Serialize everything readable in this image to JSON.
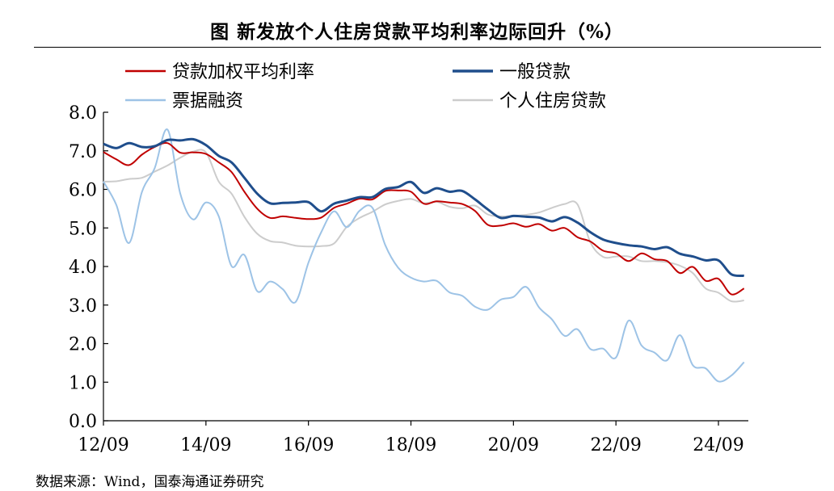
{
  "chart_data": {
    "type": "line",
    "title": "图 新发放个人住房贷款平均利率边际回升（%）",
    "xlabel": "",
    "ylabel": "",
    "ylim": [
      0,
      8
    ],
    "yticks": [
      "0.0",
      "1.0",
      "2.0",
      "3.0",
      "4.0",
      "5.0",
      "6.0",
      "7.0",
      "8.0"
    ],
    "xticks": [
      "12/09",
      "14/09",
      "16/09",
      "18/09",
      "20/09",
      "22/09",
      "24/09"
    ],
    "legend_position": "top",
    "grid": false,
    "series": [
      {
        "name": "贷款加权平均利率",
        "color": "#c00000",
        "width": 2,
        "points": [
          [
            "2012-09",
            6.97
          ],
          [
            "2012-12",
            6.78
          ],
          [
            "2013-03",
            6.63
          ],
          [
            "2013-06",
            6.9
          ],
          [
            "2013-09",
            7.1
          ],
          [
            "2013-12",
            7.2
          ],
          [
            "2014-03",
            6.95
          ],
          [
            "2014-06",
            6.96
          ],
          [
            "2014-09",
            6.92
          ],
          [
            "2014-12",
            6.7
          ],
          [
            "2015-03",
            6.45
          ],
          [
            "2015-06",
            5.94
          ],
          [
            "2015-09",
            5.5
          ],
          [
            "2015-12",
            5.26
          ],
          [
            "2016-03",
            5.3
          ],
          [
            "2016-06",
            5.26
          ],
          [
            "2016-09",
            5.23
          ],
          [
            "2016-12",
            5.27
          ],
          [
            "2017-03",
            5.52
          ],
          [
            "2017-06",
            5.63
          ],
          [
            "2017-09",
            5.76
          ],
          [
            "2017-12",
            5.74
          ],
          [
            "2018-03",
            5.96
          ],
          [
            "2018-06",
            5.97
          ],
          [
            "2018-09",
            5.94
          ],
          [
            "2018-12",
            5.63
          ],
          [
            "2019-03",
            5.69
          ],
          [
            "2019-06",
            5.66
          ],
          [
            "2019-09",
            5.62
          ],
          [
            "2019-12",
            5.44
          ],
          [
            "2020-03",
            5.08
          ],
          [
            "2020-06",
            5.06
          ],
          [
            "2020-09",
            5.12
          ],
          [
            "2020-12",
            5.03
          ],
          [
            "2021-03",
            5.1
          ],
          [
            "2021-06",
            4.93
          ],
          [
            "2021-09",
            5.0
          ],
          [
            "2021-12",
            4.76
          ],
          [
            "2022-03",
            4.65
          ],
          [
            "2022-06",
            4.41
          ],
          [
            "2022-09",
            4.34
          ],
          [
            "2022-12",
            4.14
          ],
          [
            "2023-03",
            4.34
          ],
          [
            "2023-06",
            4.19
          ],
          [
            "2023-09",
            4.14
          ],
          [
            "2023-12",
            3.83
          ],
          [
            "2024-03",
            3.99
          ],
          [
            "2024-06",
            3.63
          ],
          [
            "2024-09",
            3.68
          ],
          [
            "2024-12",
            3.28
          ],
          [
            "2025-03",
            3.43
          ]
        ]
      },
      {
        "name": "一般贷款",
        "color": "#1f4e8c",
        "width": 3,
        "points": [
          [
            "2012-09",
            7.18
          ],
          [
            "2012-12",
            7.07
          ],
          [
            "2013-03",
            7.2
          ],
          [
            "2013-06",
            7.1
          ],
          [
            "2013-09",
            7.12
          ],
          [
            "2013-12",
            7.28
          ],
          [
            "2014-03",
            7.27
          ],
          [
            "2014-06",
            7.3
          ],
          [
            "2014-09",
            7.15
          ],
          [
            "2014-12",
            6.87
          ],
          [
            "2015-03",
            6.7
          ],
          [
            "2015-06",
            6.3
          ],
          [
            "2015-09",
            5.89
          ],
          [
            "2015-12",
            5.64
          ],
          [
            "2016-03",
            5.65
          ],
          [
            "2016-06",
            5.66
          ],
          [
            "2016-09",
            5.67
          ],
          [
            "2016-12",
            5.43
          ],
          [
            "2017-03",
            5.63
          ],
          [
            "2017-06",
            5.71
          ],
          [
            "2017-09",
            5.8
          ],
          [
            "2017-12",
            5.8
          ],
          [
            "2018-03",
            6.01
          ],
          [
            "2018-06",
            6.06
          ],
          [
            "2018-09",
            6.19
          ],
          [
            "2018-12",
            5.91
          ],
          [
            "2019-03",
            6.03
          ],
          [
            "2019-06",
            5.94
          ],
          [
            "2019-09",
            5.96
          ],
          [
            "2019-12",
            5.74
          ],
          [
            "2020-03",
            5.48
          ],
          [
            "2020-06",
            5.26
          ],
          [
            "2020-09",
            5.31
          ],
          [
            "2020-12",
            5.29
          ],
          [
            "2021-03",
            5.27
          ],
          [
            "2021-06",
            5.17
          ],
          [
            "2021-09",
            5.28
          ],
          [
            "2021-12",
            5.14
          ],
          [
            "2022-03",
            4.89
          ],
          [
            "2022-06",
            4.7
          ],
          [
            "2022-09",
            4.61
          ],
          [
            "2022-12",
            4.55
          ],
          [
            "2023-03",
            4.52
          ],
          [
            "2023-06",
            4.45
          ],
          [
            "2023-09",
            4.5
          ],
          [
            "2023-12",
            4.33
          ],
          [
            "2024-03",
            4.26
          ],
          [
            "2024-06",
            4.16
          ],
          [
            "2024-09",
            4.16
          ],
          [
            "2024-12",
            3.8
          ],
          [
            "2025-03",
            3.76
          ]
        ]
      },
      {
        "name": "票据融资",
        "color": "#9dc3e6",
        "width": 2,
        "points": [
          [
            "2012-09",
            6.2
          ],
          [
            "2012-12",
            5.6
          ],
          [
            "2013-03",
            4.61
          ],
          [
            "2013-06",
            5.93
          ],
          [
            "2013-09",
            6.55
          ],
          [
            "2013-12",
            7.55
          ],
          [
            "2014-03",
            5.89
          ],
          [
            "2014-06",
            5.22
          ],
          [
            "2014-09",
            5.66
          ],
          [
            "2014-12",
            5.3
          ],
          [
            "2015-03",
            4.01
          ],
          [
            "2015-06",
            4.3
          ],
          [
            "2015-09",
            3.36
          ],
          [
            "2015-12",
            3.61
          ],
          [
            "2016-03",
            3.41
          ],
          [
            "2016-06",
            3.08
          ],
          [
            "2016-09",
            4.1
          ],
          [
            "2016-12",
            4.89
          ],
          [
            "2017-03",
            5.43
          ],
          [
            "2017-06",
            5.02
          ],
          [
            "2017-09",
            5.45
          ],
          [
            "2017-12",
            5.52
          ],
          [
            "2018-03",
            4.55
          ],
          [
            "2018-06",
            3.97
          ],
          [
            "2018-09",
            3.71
          ],
          [
            "2018-12",
            3.61
          ],
          [
            "2019-03",
            3.63
          ],
          [
            "2019-06",
            3.33
          ],
          [
            "2019-09",
            3.24
          ],
          [
            "2019-12",
            2.96
          ],
          [
            "2020-03",
            2.88
          ],
          [
            "2020-06",
            3.14
          ],
          [
            "2020-09",
            3.21
          ],
          [
            "2020-12",
            3.47
          ],
          [
            "2021-03",
            2.94
          ],
          [
            "2021-06",
            2.63
          ],
          [
            "2021-09",
            2.2
          ],
          [
            "2021-12",
            2.37
          ],
          [
            "2022-03",
            1.86
          ],
          [
            "2022-06",
            1.87
          ],
          [
            "2022-09",
            1.64
          ],
          [
            "2022-12",
            2.6
          ],
          [
            "2023-03",
            1.95
          ],
          [
            "2023-06",
            1.77
          ],
          [
            "2023-09",
            1.57
          ],
          [
            "2023-12",
            2.22
          ],
          [
            "2024-03",
            1.44
          ],
          [
            "2024-06",
            1.36
          ],
          [
            "2024-09",
            1.02
          ],
          [
            "2024-12",
            1.17
          ],
          [
            "2025-03",
            1.52
          ]
        ]
      },
      {
        "name": "个人住房贷款",
        "color": "#cccccc",
        "width": 2,
        "points": [
          [
            "2012-09",
            6.2
          ],
          [
            "2012-12",
            6.21
          ],
          [
            "2013-03",
            6.27
          ],
          [
            "2013-06",
            6.3
          ],
          [
            "2013-09",
            6.46
          ],
          [
            "2013-12",
            6.62
          ],
          [
            "2014-03",
            6.82
          ],
          [
            "2014-06",
            6.98
          ],
          [
            "2014-09",
            6.96
          ],
          [
            "2014-12",
            6.2
          ],
          [
            "2015-03",
            5.89
          ],
          [
            "2015-06",
            5.29
          ],
          [
            "2015-09",
            4.85
          ],
          [
            "2015-12",
            4.66
          ],
          [
            "2016-03",
            4.62
          ],
          [
            "2016-06",
            4.54
          ],
          [
            "2016-09",
            4.52
          ],
          [
            "2016-12",
            4.53
          ],
          [
            "2017-03",
            4.6
          ],
          [
            "2017-06",
            5.03
          ],
          [
            "2017-09",
            5.26
          ],
          [
            "2017-12",
            5.42
          ],
          [
            "2018-03",
            5.61
          ],
          [
            "2018-06",
            5.7
          ],
          [
            "2018-09",
            5.75
          ],
          [
            "2018-12",
            5.64
          ],
          [
            "2019-03",
            5.68
          ],
          [
            "2019-06",
            5.55
          ],
          [
            "2019-09",
            5.51
          ],
          [
            "2019-12",
            5.58
          ],
          [
            "2020-03",
            5.35
          ],
          [
            "2020-06",
            5.3
          ],
          [
            "2020-09",
            5.31
          ],
          [
            "2020-12",
            5.34
          ],
          [
            "2021-03",
            5.4
          ],
          [
            "2021-06",
            5.52
          ],
          [
            "2021-09",
            5.62
          ],
          [
            "2021-12",
            5.61
          ],
          [
            "2022-03",
            4.63
          ],
          [
            "2022-06",
            4.25
          ],
          [
            "2022-09",
            4.26
          ],
          [
            "2022-12",
            4.26
          ],
          [
            "2023-03",
            4.14
          ],
          [
            "2023-06",
            4.14
          ],
          [
            "2023-09",
            4.11
          ],
          [
            "2023-12",
            4.02
          ],
          [
            "2024-03",
            3.83
          ],
          [
            "2024-06",
            3.43
          ],
          [
            "2024-09",
            3.32
          ],
          [
            "2024-12",
            3.1
          ],
          [
            "2025-03",
            3.12
          ]
        ]
      }
    ]
  },
  "source": "数据来源：Wind，国泰海通证券研究"
}
